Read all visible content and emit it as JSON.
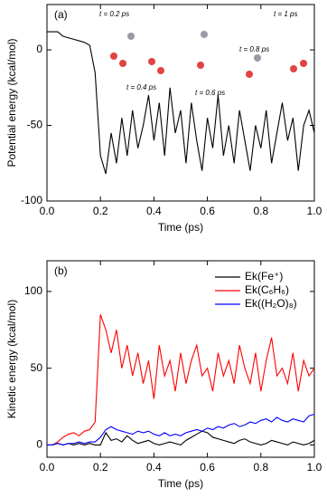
{
  "chart_data": [
    {
      "type": "line",
      "panel_label": "(a)",
      "x_label": "Time (ps)",
      "y_label": "Potential energy (kcal/mol)",
      "x": [
        0,
        0.02,
        0.04,
        0.06,
        0.08,
        0.1,
        0.12,
        0.14,
        0.16,
        0.18,
        0.2,
        0.22,
        0.24,
        0.26,
        0.28,
        0.3,
        0.32,
        0.34,
        0.36,
        0.38,
        0.4,
        0.42,
        0.44,
        0.46,
        0.48,
        0.5,
        0.52,
        0.54,
        0.56,
        0.58,
        0.6,
        0.62,
        0.64,
        0.66,
        0.68,
        0.7,
        0.72,
        0.74,
        0.76,
        0.78,
        0.8,
        0.82,
        0.84,
        0.86,
        0.88,
        0.9,
        0.92,
        0.94,
        0.96,
        0.98,
        1.0
      ],
      "values": [
        12,
        12,
        12,
        9,
        8,
        7,
        6,
        5,
        3,
        -15,
        -70,
        -82,
        -55,
        -75,
        -45,
        -70,
        -40,
        -65,
        -50,
        -30,
        -60,
        -35,
        -70,
        -25,
        -55,
        -40,
        -75,
        -35,
        -60,
        -80,
        -45,
        -65,
        -30,
        -70,
        -50,
        -75,
        -40,
        -60,
        -80,
        -50,
        -65,
        -40,
        -75,
        -55,
        -35,
        -60,
        -45,
        -80,
        -50,
        -40,
        -55
      ],
      "color": "#000000",
      "xlim": [
        0,
        1
      ],
      "ylim": [
        -100,
        30
      ],
      "xticks": [
        {
          "value": 0,
          "label": "0.0"
        },
        {
          "value": 0.2,
          "label": "0.2"
        },
        {
          "value": 0.4,
          "label": "0.4"
        },
        {
          "value": 0.6,
          "label": "0.6"
        },
        {
          "value": 0.8,
          "label": "0.8"
        },
        {
          "value": 1,
          "label": "1.0"
        }
      ],
      "yticks": [
        0,
        -50,
        -100
      ],
      "annotations": [
        "t = 0.2 ps",
        "t = 0.4 ps",
        "t = 0.6 ps",
        "t = 0.8 ps",
        "t = 1 ps"
      ]
    },
    {
      "type": "line",
      "panel_label": "(b)",
      "x_label": "Time (ps)",
      "y_label": "Kinetic energy (kcal/mol)",
      "x": [
        0,
        0.02,
        0.04,
        0.06,
        0.08,
        0.1,
        0.12,
        0.14,
        0.16,
        0.18,
        0.2,
        0.22,
        0.24,
        0.26,
        0.28,
        0.3,
        0.32,
        0.34,
        0.36,
        0.38,
        0.4,
        0.42,
        0.44,
        0.46,
        0.48,
        0.5,
        0.52,
        0.54,
        0.56,
        0.58,
        0.6,
        0.62,
        0.64,
        0.66,
        0.68,
        0.7,
        0.72,
        0.74,
        0.76,
        0.78,
        0.8,
        0.82,
        0.84,
        0.86,
        0.88,
        0.9,
        0.92,
        0.94,
        0.96,
        0.98,
        1.0
      ],
      "series": [
        {
          "name": "Ek(Fe⁺)",
          "color": "#000000",
          "values": [
            0,
            0,
            1,
            0,
            1,
            0,
            1,
            0,
            1,
            0,
            0,
            8,
            3,
            4,
            2,
            6,
            3,
            1,
            2,
            3,
            1,
            0,
            1,
            2,
            1,
            0,
            3,
            5,
            7,
            9,
            8,
            5,
            4,
            3,
            2,
            1,
            3,
            4,
            2,
            1,
            0,
            1,
            3,
            2,
            1,
            0,
            2,
            1,
            0,
            1,
            3
          ]
        },
        {
          "name": "Ek(C₆H₆)",
          "color": "#ff0000",
          "values": [
            0,
            0,
            2,
            5,
            7,
            8,
            6,
            9,
            10,
            15,
            85,
            75,
            60,
            75,
            50,
            65,
            45,
            60,
            40,
            55,
            30,
            65,
            45,
            55,
            35,
            60,
            40,
            55,
            65,
            45,
            50,
            35,
            60,
            45,
            55,
            40,
            65,
            50,
            40,
            60,
            35,
            55,
            70,
            45,
            50,
            40,
            60,
            35,
            55,
            45,
            50
          ]
        },
        {
          "name": "Ek((H₂O)₈)",
          "color": "#0000ff",
          "values": [
            0,
            0,
            1,
            0,
            1,
            1,
            2,
            1,
            2,
            2,
            5,
            10,
            12,
            10,
            9,
            8,
            7,
            9,
            8,
            9,
            7,
            6,
            8,
            6,
            7,
            6,
            8,
            9,
            10,
            9,
            11,
            10,
            12,
            11,
            13,
            14,
            12,
            13,
            15,
            14,
            16,
            17,
            15,
            18,
            16,
            15,
            17,
            16,
            15,
            19,
            20
          ]
        }
      ],
      "legend": "upper right",
      "xlim": [
        0,
        1
      ],
      "ylim": [
        -8,
        120
      ],
      "xticks": [
        {
          "value": 0,
          "label": "0.0"
        },
        {
          "value": 0.2,
          "label": "0.2"
        },
        {
          "value": 0.4,
          "label": "0.4"
        },
        {
          "value": 0.6,
          "label": "0.6"
        },
        {
          "value": 0.8,
          "label": "0.8"
        },
        {
          "value": 1,
          "label": "1.0"
        }
      ],
      "yticks": [
        0,
        50,
        100
      ]
    }
  ]
}
